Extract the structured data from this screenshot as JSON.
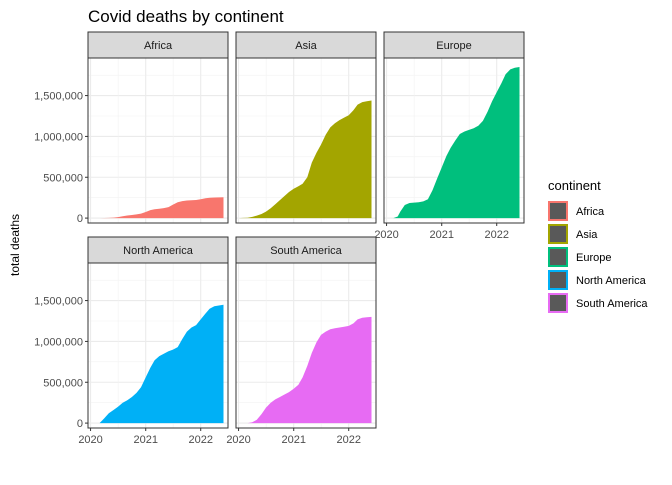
{
  "chart_data": {
    "type": "area",
    "title": "Covid deaths by continent",
    "xlabel": "",
    "ylabel": "total deaths",
    "x_type": "date",
    "xlim": [
      "2019-12-15",
      "2022-07-01"
    ],
    "ylim": [
      -60000,
      1960000
    ],
    "y_ticks": [
      0,
      500000,
      1000000,
      1500000
    ],
    "y_tick_labels": [
      "0",
      "500,000",
      "1,000,000",
      "1,500,000"
    ],
    "x_ticks": [
      "2020-01-01",
      "2021-01-01",
      "2022-01-01"
    ],
    "x_tick_labels": [
      "2020",
      "2021",
      "2022"
    ],
    "grid": true,
    "facet_layout": {
      "cols": 3,
      "rows": 2
    },
    "legend": {
      "title": "continent",
      "placement": "right"
    },
    "series": [
      {
        "name": "Africa",
        "color": "#F8766D",
        "x": [
          "2020-02-15",
          "2020-03-01",
          "2020-04-01",
          "2020-05-01",
          "2020-06-01",
          "2020-07-01",
          "2020-08-01",
          "2020-09-01",
          "2020-10-01",
          "2020-11-01",
          "2020-12-01",
          "2021-01-01",
          "2021-02-01",
          "2021-03-01",
          "2021-04-01",
          "2021-05-01",
          "2021-06-01",
          "2021-07-01",
          "2021-08-01",
          "2021-09-01",
          "2021-10-01",
          "2021-11-01",
          "2021-12-01",
          "2022-01-01",
          "2022-02-01",
          "2022-03-01",
          "2022-04-01",
          "2022-05-01",
          "2022-06-01"
        ],
        "y": [
          0,
          0,
          1000,
          3000,
          6000,
          12000,
          22000,
          32000,
          38000,
          45000,
          55000,
          75000,
          98000,
          108000,
          115000,
          122000,
          135000,
          165000,
          195000,
          208000,
          215000,
          218000,
          222000,
          230000,
          243000,
          250000,
          252000,
          253000,
          255000
        ]
      },
      {
        "name": "Asia",
        "color": "#A3A500",
        "x": [
          "2020-01-01",
          "2020-02-01",
          "2020-03-01",
          "2020-04-01",
          "2020-05-01",
          "2020-06-01",
          "2020-07-01",
          "2020-08-01",
          "2020-09-01",
          "2020-10-01",
          "2020-11-01",
          "2020-12-01",
          "2021-01-01",
          "2021-02-01",
          "2021-03-01",
          "2021-04-01",
          "2021-05-01",
          "2021-06-01",
          "2021-07-01",
          "2021-08-01",
          "2021-09-01",
          "2021-10-01",
          "2021-11-01",
          "2021-12-01",
          "2022-01-01",
          "2022-02-01",
          "2022-03-01",
          "2022-04-01",
          "2022-05-01",
          "2022-06-01"
        ],
        "y": [
          0,
          2000,
          5000,
          15000,
          30000,
          50000,
          80000,
          120000,
          170000,
          220000,
          270000,
          320000,
          360000,
          390000,
          420000,
          500000,
          680000,
          800000,
          900000,
          1020000,
          1110000,
          1160000,
          1200000,
          1230000,
          1260000,
          1320000,
          1390000,
          1420000,
          1430000,
          1440000
        ]
      },
      {
        "name": "Europe",
        "color": "#00BF7D",
        "x": [
          "2020-02-15",
          "2020-03-15",
          "2020-04-01",
          "2020-05-01",
          "2020-06-01",
          "2020-07-01",
          "2020-08-01",
          "2020-09-01",
          "2020-10-01",
          "2020-11-01",
          "2020-12-01",
          "2021-01-01",
          "2021-02-01",
          "2021-03-01",
          "2021-04-01",
          "2021-05-01",
          "2021-06-01",
          "2021-07-01",
          "2021-08-01",
          "2021-09-01",
          "2021-10-01",
          "2021-11-01",
          "2021-12-01",
          "2022-01-01",
          "2022-02-01",
          "2022-03-01",
          "2022-04-01",
          "2022-05-01",
          "2022-06-01"
        ],
        "y": [
          0,
          20000,
          80000,
          160000,
          185000,
          190000,
          195000,
          205000,
          230000,
          340000,
          480000,
          620000,
          760000,
          860000,
          950000,
          1030000,
          1060000,
          1080000,
          1100000,
          1130000,
          1190000,
          1300000,
          1430000,
          1540000,
          1650000,
          1760000,
          1820000,
          1840000,
          1850000
        ]
      },
      {
        "name": "North America",
        "color": "#00B0F6",
        "x": [
          "2020-03-01",
          "2020-04-01",
          "2020-05-01",
          "2020-06-01",
          "2020-07-01",
          "2020-08-01",
          "2020-09-01",
          "2020-10-01",
          "2020-11-01",
          "2020-12-01",
          "2021-01-01",
          "2021-02-01",
          "2021-03-01",
          "2021-04-01",
          "2021-05-01",
          "2021-06-01",
          "2021-07-01",
          "2021-08-01",
          "2021-09-01",
          "2021-10-01",
          "2021-11-01",
          "2021-12-01",
          "2022-01-01",
          "2022-02-01",
          "2022-03-01",
          "2022-04-01",
          "2022-05-01",
          "2022-06-01"
        ],
        "y": [
          0,
          60000,
          120000,
          160000,
          200000,
          250000,
          280000,
          320000,
          370000,
          440000,
          560000,
          680000,
          770000,
          820000,
          850000,
          880000,
          900000,
          930000,
          1030000,
          1120000,
          1170000,
          1200000,
          1270000,
          1340000,
          1400000,
          1430000,
          1440000,
          1450000
        ]
      },
      {
        "name": "South America",
        "color": "#E76BF3",
        "x": [
          "2020-03-01",
          "2020-04-01",
          "2020-05-01",
          "2020-06-01",
          "2020-07-01",
          "2020-08-01",
          "2020-09-01",
          "2020-10-01",
          "2020-11-01",
          "2020-12-01",
          "2021-01-01",
          "2021-02-01",
          "2021-03-01",
          "2021-04-01",
          "2021-05-01",
          "2021-06-01",
          "2021-07-01",
          "2021-08-01",
          "2021-09-01",
          "2021-10-01",
          "2021-11-01",
          "2021-12-01",
          "2022-01-01",
          "2022-02-01",
          "2022-03-01",
          "2022-04-01",
          "2022-05-01",
          "2022-06-01"
        ],
        "y": [
          0,
          10000,
          40000,
          110000,
          190000,
          250000,
          290000,
          320000,
          350000,
          380000,
          420000,
          470000,
          560000,
          700000,
          860000,
          990000,
          1080000,
          1120000,
          1150000,
          1160000,
          1170000,
          1180000,
          1190000,
          1220000,
          1270000,
          1290000,
          1295000,
          1300000
        ]
      }
    ]
  }
}
